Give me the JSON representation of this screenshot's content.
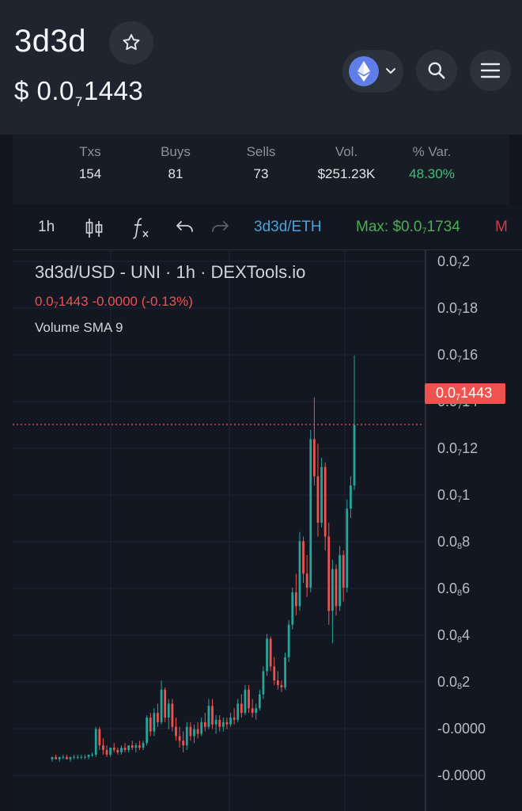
{
  "header": {
    "token_name": "3d3d",
    "price_prefix": "$ 0.0",
    "price_sub": "7",
    "price_rest": "1443"
  },
  "icons": {
    "star": "star-outline-icon",
    "chain": "ethereum-icon",
    "search": "search-icon",
    "menu": "hamburger-menu-icon"
  },
  "stats": [
    {
      "label": "Txs",
      "value": "154"
    },
    {
      "label": "Buys",
      "value": "81"
    },
    {
      "label": "Sells",
      "value": "73"
    },
    {
      "label": "Vol.",
      "value": "$251.23K"
    },
    {
      "label": "% Var.",
      "value": "48.30%"
    }
  ],
  "toolbar": {
    "interval": "1h",
    "pair": "3d3d/ETH",
    "max_prefix": "Max: $0.0",
    "max_sub": "7",
    "max_rest": "1734",
    "cut_text": "M"
  },
  "legend": {
    "title": "3d3d/USD - UNI · 1h · DEXTools.io",
    "price_prefix": "0.0",
    "price_sub": "7",
    "price_rest": "1443",
    "change": " -0.0000 (-0.13%)",
    "volume_label": "Volume SMA 9"
  },
  "price_tag": {
    "prefix": "0.0",
    "sub": "7",
    "rest": "1443"
  },
  "y_axis": [
    {
      "p": "0.0",
      "s": "7",
      "r": "2"
    },
    {
      "p": "0.0",
      "s": "7",
      "r": "18"
    },
    {
      "p": "0.0",
      "s": "7",
      "r": "16"
    },
    {
      "p": "0.0",
      "s": "7",
      "r": "14"
    },
    {
      "p": "0.0",
      "s": "7",
      "r": "12"
    },
    {
      "p": "0.0",
      "s": "7",
      "r": "1"
    },
    {
      "p": "0.0",
      "s": "8",
      "r": "8"
    },
    {
      "p": "0.0",
      "s": "8",
      "r": "6"
    },
    {
      "p": "0.0",
      "s": "8",
      "r": "4"
    },
    {
      "p": "0.0",
      "s": "8",
      "r": "2"
    },
    {
      "p": "-0.0000",
      "s": "",
      "r": ""
    },
    {
      "p": "-0.0000",
      "s": "",
      "r": ""
    }
  ],
  "colors": {
    "up": "#26a69a",
    "down": "#ef5350",
    "accent": "#4aa3d8",
    "positive": "#3fbf7f"
  },
  "chart_data": {
    "type": "candlestick",
    "y_unit": "×1e-8 USD",
    "ylim": [
      -1.0,
      21.6
    ],
    "current": 14.43,
    "max": 17.34,
    "series": [
      {
        "name": "3d3d/USD",
        "values": [
          [
            0.0,
            0.1,
            -0.1,
            0.1
          ],
          [
            0.1,
            0.2,
            0.0,
            0.0
          ],
          [
            0.0,
            0.1,
            -0.1,
            0.1
          ],
          [
            0.1,
            0.2,
            0.0,
            0.1
          ],
          [
            0.1,
            0.2,
            0.0,
            0.0
          ],
          [
            0.0,
            0.1,
            -0.1,
            0.1
          ],
          [
            0.1,
            0.2,
            0.0,
            0.1
          ],
          [
            0.1,
            0.2,
            0.0,
            0.1
          ],
          [
            0.1,
            0.2,
            0.0,
            0.1
          ],
          [
            0.1,
            0.2,
            0.0,
            0.1
          ],
          [
            0.1,
            0.2,
            0.0,
            0.2
          ],
          [
            0.2,
            0.3,
            0.1,
            0.2
          ],
          [
            0.2,
            1.4,
            0.1,
            1.3
          ],
          [
            1.3,
            1.4,
            0.4,
            0.6
          ],
          [
            0.6,
            0.9,
            0.2,
            0.4
          ],
          [
            0.4,
            0.6,
            0.1,
            0.2
          ],
          [
            0.2,
            0.5,
            0.1,
            0.5
          ],
          [
            0.5,
            0.7,
            0.3,
            0.4
          ],
          [
            0.4,
            0.5,
            0.2,
            0.3
          ],
          [
            0.3,
            0.6,
            0.2,
            0.5
          ],
          [
            0.5,
            0.7,
            0.3,
            0.4
          ],
          [
            0.4,
            0.6,
            0.3,
            0.6
          ],
          [
            0.6,
            0.8,
            0.4,
            0.5
          ],
          [
            0.5,
            0.7,
            0.3,
            0.6
          ],
          [
            0.6,
            0.8,
            0.4,
            0.5
          ],
          [
            0.5,
            0.8,
            0.4,
            0.7
          ],
          [
            0.7,
            1.9,
            0.6,
            1.8
          ],
          [
            1.8,
            2.0,
            1.0,
            1.2
          ],
          [
            1.2,
            2.2,
            1.0,
            2.0
          ],
          [
            2.0,
            2.4,
            1.4,
            1.6
          ],
          [
            1.6,
            3.4,
            1.5,
            3.0
          ],
          [
            3.0,
            3.1,
            1.6,
            1.8
          ],
          [
            1.8,
            2.6,
            1.3,
            2.4
          ],
          [
            2.4,
            2.6,
            1.2,
            1.4
          ],
          [
            1.4,
            1.8,
            0.8,
            1.0
          ],
          [
            1.0,
            1.4,
            0.5,
            0.8
          ],
          [
            0.8,
            1.2,
            0.3,
            0.6
          ],
          [
            0.6,
            1.6,
            0.4,
            1.4
          ],
          [
            1.4,
            1.6,
            0.8,
            1.0
          ],
          [
            1.0,
            1.5,
            0.7,
            1.3
          ],
          [
            1.3,
            1.6,
            0.9,
            1.1
          ],
          [
            1.1,
            1.8,
            1.0,
            1.6
          ],
          [
            1.6,
            2.0,
            1.2,
            1.4
          ],
          [
            1.4,
            2.6,
            1.3,
            2.3
          ],
          [
            2.3,
            2.6,
            1.3,
            1.5
          ],
          [
            1.5,
            1.9,
            1.1,
            1.7
          ],
          [
            1.7,
            1.9,
            1.2,
            1.4
          ],
          [
            1.4,
            1.8,
            1.2,
            1.6
          ],
          [
            1.6,
            1.8,
            1.3,
            1.5
          ],
          [
            1.5,
            2.0,
            1.4,
            1.8
          ],
          [
            1.8,
            2.2,
            1.5,
            1.7
          ],
          [
            1.7,
            2.6,
            1.6,
            2.4
          ],
          [
            2.4,
            2.8,
            1.8,
            2.0
          ],
          [
            2.0,
            3.2,
            1.9,
            3.0
          ],
          [
            3.0,
            3.2,
            2.0,
            2.2
          ],
          [
            2.2,
            2.6,
            1.8,
            2.0
          ],
          [
            2.0,
            2.4,
            1.7,
            2.2
          ],
          [
            2.2,
            3.0,
            2.1,
            2.8
          ],
          [
            2.8,
            4.0,
            2.6,
            3.8
          ],
          [
            3.8,
            5.4,
            3.6,
            5.2
          ],
          [
            5.2,
            5.3,
            3.8,
            4.0
          ],
          [
            4.0,
            4.4,
            3.2,
            3.4
          ],
          [
            3.4,
            3.8,
            3.0,
            3.2
          ],
          [
            3.2,
            3.4,
            2.9,
            3.1
          ],
          [
            3.1,
            4.6,
            3.0,
            4.4
          ],
          [
            4.4,
            6.0,
            4.2,
            5.8
          ],
          [
            5.8,
            7.4,
            5.6,
            7.2
          ],
          [
            7.2,
            8.0,
            6.2,
            6.6
          ],
          [
            6.6,
            9.8,
            6.4,
            9.4
          ],
          [
            9.4,
            9.6,
            7.6,
            8.0
          ],
          [
            8.0,
            8.8,
            7.0,
            7.4
          ],
          [
            7.4,
            14.2,
            7.2,
            13.8
          ],
          [
            13.8,
            15.6,
            11.8,
            12.2
          ],
          [
            12.2,
            13.6,
            9.6,
            10.2
          ],
          [
            10.2,
            13.0,
            10.0,
            12.6
          ],
          [
            12.6,
            12.8,
            9.0,
            9.6
          ],
          [
            9.6,
            10.2,
            5.8,
            6.4
          ],
          [
            6.4,
            8.6,
            5.0,
            8.2
          ],
          [
            8.2,
            8.4,
            6.2,
            6.6
          ],
          [
            6.6,
            9.2,
            6.4,
            8.8
          ],
          [
            8.8,
            9.0,
            6.8,
            7.4
          ],
          [
            7.4,
            11.2,
            7.2,
            10.8
          ],
          [
            10.8,
            12.2,
            10.4,
            11.8
          ],
          [
            11.8,
            17.4,
            11.6,
            14.4
          ]
        ]
      }
    ]
  }
}
